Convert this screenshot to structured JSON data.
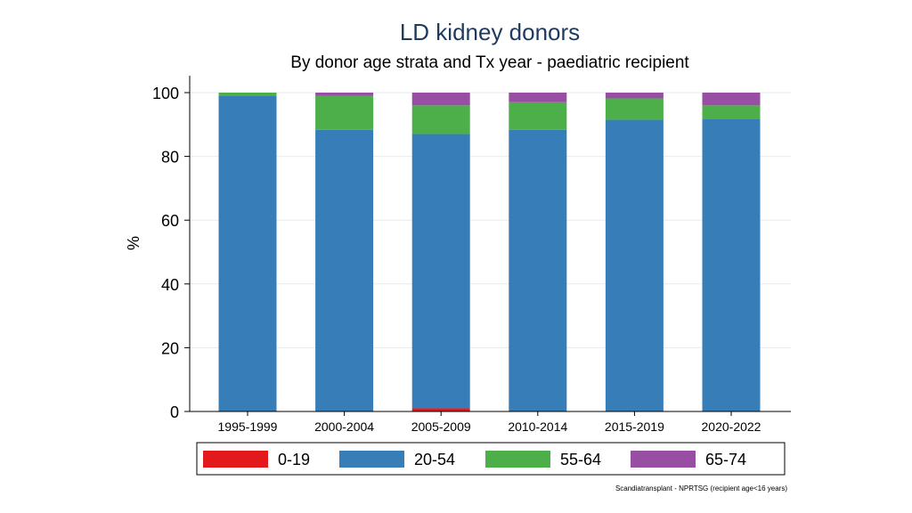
{
  "chart_data": {
    "type": "bar",
    "stacked": true,
    "title": "LD kidney donors",
    "subtitle": "By donor age strata and Tx year - paediatric recipient",
    "xlabel": "",
    "ylabel": "%",
    "ylim": [
      0,
      105
    ],
    "yticks": [
      0,
      20,
      40,
      60,
      80,
      100
    ],
    "grid": true,
    "categories": [
      "1995-1999",
      "2000-2004",
      "2005-2009",
      "2010-2014",
      "2015-2019",
      "2020-2022"
    ],
    "series": [
      {
        "name": "0-19",
        "color": "#e31a1c",
        "values": [
          0,
          0,
          1,
          0,
          0,
          0
        ]
      },
      {
        "name": "20-54",
        "color": "#377eb8",
        "values": [
          99,
          88.3,
          86,
          88.3,
          91.5,
          91.8
        ]
      },
      {
        "name": "55-64",
        "color": "#4daf4a",
        "values": [
          1,
          10.7,
          9,
          8.7,
          6.7,
          4.2
        ]
      },
      {
        "name": "65-74",
        "color": "#984ea3",
        "values": [
          0,
          1,
          4,
          3,
          1.8,
          4
        ]
      }
    ],
    "legend_position": "bottom",
    "footnote": "Scandiatransplant - NPRTSG (recipient age<16 years)"
  }
}
